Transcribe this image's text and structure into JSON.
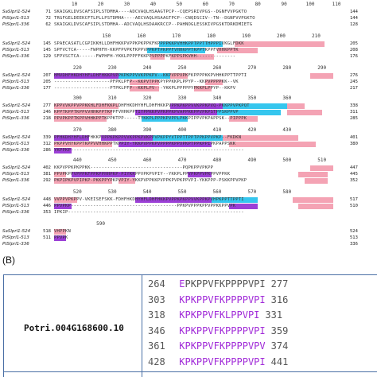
{
  "alignment": {
    "blocks": [
      {
        "ruler": [
          {
            "label": "10",
            "pos": 0.07
          },
          {
            "label": "20",
            "pos": 0.16
          },
          {
            "label": "30",
            "pos": 0.25
          },
          {
            "label": "40",
            "pos": 0.34
          },
          {
            "label": "50",
            "pos": 0.43
          },
          {
            "label": "60",
            "pos": 0.52
          },
          {
            "label": "70",
            "pos": 0.61
          },
          {
            "label": "80",
            "pos": 0.7
          },
          {
            "label": "90",
            "pos": 0.79
          },
          {
            "label": "100",
            "pos": 0.88
          },
          {
            "label": "110",
            "pos": 0.97
          }
        ],
        "rows": [
          {
            "name": "SaSlprl1-524",
            "start": "71",
            "seq": "SKAIGKLDVSCAFSIPLSTDMHA----ADCVAQLHSAAGTPCP--CQEPSRIVPGS--DGNFVVPGKTO",
            "end": "144"
          },
          {
            "name": "PtSlprl1-513",
            "start": "72",
            "seq": "TRGFGELDEEKCFTLPLLPSTDMHA----AECVAQLHSAAGTPCP--CNQDSCIV--TN--DGNFVVPGKTO",
            "end": "144"
          },
          {
            "name": "PtSlprl1-336",
            "start": "62",
            "seq": "SKAIGKLDVSCAFSIPLSTDMHA--ADCVAQLHSDAAKRCCP--PAHNOGLESSKIVPGSKTDRKDMIETG",
            "end": "128"
          }
        ]
      },
      {
        "ruler": [
          {
            "label": "150",
            "pos": 0.18
          },
          {
            "label": "160",
            "pos": 0.3
          },
          {
            "label": "170",
            "pos": 0.42
          },
          {
            "label": "180",
            "pos": 0.54
          },
          {
            "label": "190",
            "pos": 0.66
          },
          {
            "label": "200",
            "pos": 0.78
          },
          {
            "label": "210",
            "pos": 0.9
          }
        ],
        "rows": [
          {
            "name": "SaSlprl1-524",
            "start": "145",
            "seq": "SPAECASATLCGPIKKHLLDHFHKKPVPPKPKPPKFKPPPPKKPVHHKPPTPPTTHPPPIVKGLFDKK",
            "end": "205",
            "hl": [
              [
                0.36,
                0.58,
                "cyan"
              ],
              [
                0.62,
                0.93,
                "pink"
              ]
            ]
          },
          {
            "name": "PtSlprl1-513",
            "start": "145",
            "seq": "SPFVCTCA-----FWPHFH-KKPFPVPKFKPPVPPKPTPKPPFVHHKPPTKPPTKPPFVHHKPPTK",
            "end": "208",
            "hl": [
              [
                0.32,
                0.52,
                "cyan"
              ],
              [
                0.56,
                0.7,
                "pink"
              ]
            ]
          },
          {
            "name": "PtSlprl1-336",
            "start": "129",
            "seq": "SFPVSCTCA------FWPHFH-YKKLPPPFFKKPPVPPPPKFKPPSPKVHH--------------",
            "end": "176",
            "hl": [
              [
                0.33,
                0.38,
                "pink"
              ],
              [
                0.4,
                0.55,
                "pink"
              ]
            ]
          }
        ]
      },
      {
        "ruler": [
          {
            "label": "220",
            "pos": 0.08
          },
          {
            "label": "230",
            "pos": 0.2
          },
          {
            "label": "240",
            "pos": 0.32
          },
          {
            "label": "250",
            "pos": 0.44
          },
          {
            "label": "260",
            "pos": 0.56
          },
          {
            "label": "270",
            "pos": 0.68
          },
          {
            "label": "280",
            "pos": 0.8
          },
          {
            "label": "290",
            "pos": 0.92
          }
        ],
        "rows": [
          {
            "name": "SaSlprl1-524",
            "start": "207",
            "seq": "HMVDHFHKDHYHFLDHFHKKPVPPKPKPPVVKPPKPV--KKPVPPVPKFKPPPPKKPVHHKPPTTPPTI",
            "end": "276",
            "hl": [
              [
                0.0,
                0.22,
                "purple"
              ],
              [
                0.22,
                0.4,
                "cyan"
              ],
              [
                0.4,
                0.46,
                "pink"
              ],
              [
                0.88,
                0.96,
                "pink"
              ]
            ]
          },
          {
            "name": "PtSlprl1-513",
            "start": "205",
            "seq": "--------------------PFPKLPFP--KKPVTPPKPYPPKKPLPPYP--KKPVPPPPKK--VK",
            "end": "245",
            "hl": [
              [
                0.26,
                0.36,
                "pink"
              ],
              [
                0.52,
                0.58,
                "pink"
              ]
            ]
          },
          {
            "name": "PtSlprl1-336",
            "start": "177",
            "seq": "--------------------PTPKLPFP--KKPLPV---YKKPLPPPPPYPKKPLPPYP--KKPV",
            "end": "217",
            "hl": [
              [
                0.26,
                0.36,
                "pink"
              ],
              [
                0.48,
                0.54,
                "pink"
              ]
            ]
          }
        ]
      },
      {
        "ruler": [
          {
            "label": "300",
            "pos": 0.08
          },
          {
            "label": "310",
            "pos": 0.2
          },
          {
            "label": "320",
            "pos": 0.32
          },
          {
            "label": "330",
            "pos": 0.44
          },
          {
            "label": "340",
            "pos": 0.56
          },
          {
            "label": "350",
            "pos": 0.68
          },
          {
            "label": "360",
            "pos": 0.8
          }
        ],
        "rows": [
          {
            "name": "SaSlprl1-524",
            "start": "277",
            "seq": "KPPVVKPPVPPKKHLFDHFKKPLDHFHKDHYHFLDHFHKKPVPPKPKPPVVKPPKPVQ-PKKPPVPKPQT",
            "end": "338",
            "hl": [
              [
                0.0,
                0.22,
                "pink"
              ],
              [
                0.4,
                0.58,
                "purple"
              ],
              [
                0.58,
                0.8,
                "cyan"
              ],
              [
                0.8,
                0.86,
                "pink"
              ]
            ]
          },
          {
            "name": "PtSlprl1-513",
            "start": "246",
            "seq": "KPPTKPPTKPPVVHHKPPTKPPFVHHKPPTIYPPKKPVPKPPKPVAPPKKPPVPKPSTPPSKPPVP",
            "end": "311",
            "hl": [
              [
                0.0,
                0.2,
                "pink"
              ],
              [
                0.28,
                0.56,
                "purple"
              ],
              [
                0.56,
                0.78,
                "cyan"
              ],
              [
                0.8,
                0.92,
                "pink"
              ]
            ]
          },
          {
            "name": "PtSlprl1-336",
            "start": "218",
            "seq": "PPVPKPPTKPPVHHKPPTKPPKTPP-----TYKKPLPPPKPVPPLPKKPIPPVPKPAPPSK--PIPPPK",
            "end": "285",
            "hl": [
              [
                0.0,
                0.18,
                "pink"
              ],
              [
                0.3,
                0.46,
                "cyan"
              ],
              [
                0.6,
                0.7,
                "pink"
              ]
            ]
          }
        ]
      },
      {
        "ruler": [
          {
            "label": "370",
            "pos": 0.08
          },
          {
            "label": "380",
            "pos": 0.2
          },
          {
            "label": "390",
            "pos": 0.32
          },
          {
            "label": "400",
            "pos": 0.44
          },
          {
            "label": "410",
            "pos": 0.56
          },
          {
            "label": "420",
            "pos": 0.68
          },
          {
            "label": "430",
            "pos": 0.8
          }
        ],
        "rows": [
          {
            "name": "SaSlprl1-524",
            "start": "339",
            "seq": "PFHKDHYHFLDHFHKKPVPPKPKPPVVKPPKPVKPPVPKPPYVTPPTTPPTPPKPPVPKP--FKDKN",
            "end": "401",
            "hl": [
              [
                0.0,
                0.12,
                "purple"
              ],
              [
                0.16,
                0.34,
                "purple"
              ],
              [
                0.34,
                0.58,
                "cyan"
              ],
              [
                0.58,
                0.84,
                "pink"
              ]
            ]
          },
          {
            "name": "PtSlprl1-513",
            "start": "312",
            "seq": "PKPPVHYKPPTKPPVVHHKPPTKPPIY-YKKPVPPKPVPPPPKPPVPKPTPPKPPIPKPAPPSKK",
            "end": "380",
            "hl": [
              [
                0.0,
                0.2,
                "pink"
              ],
              [
                0.22,
                0.54,
                "purple"
              ],
              [
                0.6,
                0.9,
                "pink"
              ]
            ]
          },
          {
            "name": "PtSlprl1-336",
            "start": "286",
            "seq": "YKPPKP--------------------------------------------------------------",
            "end": "",
            "hl": [
              [
                0.0,
                0.06,
                "purple"
              ]
            ]
          }
        ]
      },
      {
        "ruler": [
          {
            "label": "440",
            "pos": 0.08
          },
          {
            "label": "450",
            "pos": 0.2
          },
          {
            "label": "460",
            "pos": 0.32
          },
          {
            "label": "470",
            "pos": 0.44
          },
          {
            "label": "480",
            "pos": 0.56
          },
          {
            "label": "490",
            "pos": 0.68
          },
          {
            "label": "500",
            "pos": 0.8
          },
          {
            "label": "510",
            "pos": 0.92
          }
        ],
        "rows": [
          {
            "name": "SaSlprl1-524",
            "start": "402",
            "seq": "KKPVPPKPKPPKK---------------------------------PQPKPPVPKPP",
            "end": "447",
            "hl": [
              [
                0.88,
                0.96,
                "pink"
              ]
            ]
          },
          {
            "name": "PtSlprl1-513",
            "start": "381",
            "seq": "PPVPKPPVPPPKFPPKPPHHPKP-PIYKKPPVPKPVPIY--YKKPLPPVPKPPVPKPPVPPKK",
            "end": "445",
            "hl": [
              [
                0.0,
                0.04,
                "pink"
              ],
              [
                0.06,
                0.28,
                "purple"
              ],
              [
                0.46,
                0.54,
                "purple"
              ],
              [
                0.84,
                0.94,
                "pink"
              ]
            ]
          },
          {
            "name": "PtSlprl1-336",
            "start": "292",
            "seq": "PKPIPKPVPIPKP-PKKPPYPKPVPIY-YKKPVPPKKPVPPKPVPKPPVPI-YKKPPP-PSKKPPVPKP",
            "end": "352",
            "hl": [
              [
                0.0,
                0.2,
                "pink"
              ],
              [
                0.22,
                0.28,
                "pink"
              ],
              [
                0.86,
                0.94,
                "pink"
              ]
            ]
          }
        ]
      },
      {
        "ruler": [
          {
            "label": "520",
            "pos": 0.08
          },
          {
            "label": "530",
            "pos": 0.2
          },
          {
            "label": "540",
            "pos": 0.32
          },
          {
            "label": "550",
            "pos": 0.44
          },
          {
            "label": "560",
            "pos": 0.56
          },
          {
            "label": "570",
            "pos": 0.68
          },
          {
            "label": "580",
            "pos": 0.8
          }
        ],
        "rows": [
          {
            "name": "SaSlprl1-524",
            "start": "448",
            "seq": "VVPPVPKPPV-VKEISEFSKK-FDHFHKDHYHFLDHFHKKPVPPKPKPPVVKPPKPVHPKPPTTPPTI",
            "end": "517",
            "hl": [
              [
                0.0,
                0.08,
                "pink"
              ],
              [
                0.28,
                0.54,
                "purple"
              ],
              [
                0.54,
                0.7,
                "cyan"
              ],
              [
                0.82,
                0.96,
                "pink"
              ]
            ]
          },
          {
            "name": "PtSlprl1-513",
            "start": "446",
            "seq": "PPVPKP--------------------------------------PPKPVPPPKPPVPPKKPPVPK",
            "end": "510",
            "hl": [
              [
                0.0,
                0.06,
                "purple"
              ],
              [
                0.6,
                0.7,
                "purple"
              ],
              [
                0.84,
                0.96,
                "pink"
              ]
            ]
          },
          {
            "name": "PtSlprl1-336",
            "start": "353",
            "seq": "IPKIP---------------------------------------------------------------",
            "end": "",
            "hl": []
          }
        ]
      },
      {
        "ruler": [
          {
            "label": "590",
            "pos": 0.16
          }
        ],
        "rows": [
          {
            "name": "SaSlprl1-524",
            "start": "518",
            "seq": "VHPPKN",
            "end": "524",
            "hl": [
              [
                0.0,
                0.04,
                "pink"
              ]
            ]
          },
          {
            "name": "PtSlprl1-513",
            "start": "511",
            "seq": "PPVPK",
            "end": "513",
            "hl": [
              [
                0.0,
                0.04,
                "purple"
              ]
            ]
          },
          {
            "name": "PtSlprl1-336",
            "start": "",
            "seq": "",
            "end": "336",
            "hl": []
          }
        ]
      }
    ]
  },
  "panel_label": "(B)",
  "table": {
    "gene_id": "Potri.004G168600.10",
    "motifs": [
      {
        "start": "264",
        "lead": "E",
        "seq": "PKPPVFKPPPPVPI",
        "end": "277",
        "highlight_first_only": true
      },
      {
        "start": "303",
        "lead": "K",
        "seq": "PKPPVFKPPPPVPI",
        "end": "316"
      },
      {
        "start": "318",
        "lead": "K",
        "seq": "PKPPVFKLPPVPI",
        "end": "331"
      },
      {
        "start": "346",
        "lead": "K",
        "seq": "PKPPVFKPPPPVPI",
        "end": "359"
      },
      {
        "start": "361",
        "lead": "K",
        "seq": "PKPPVFKPPPPVPV",
        "end": "374"
      },
      {
        "start": "428",
        "lead": "K",
        "seq": "PKPPVFKPPPPVPI",
        "end": "441"
      }
    ]
  }
}
